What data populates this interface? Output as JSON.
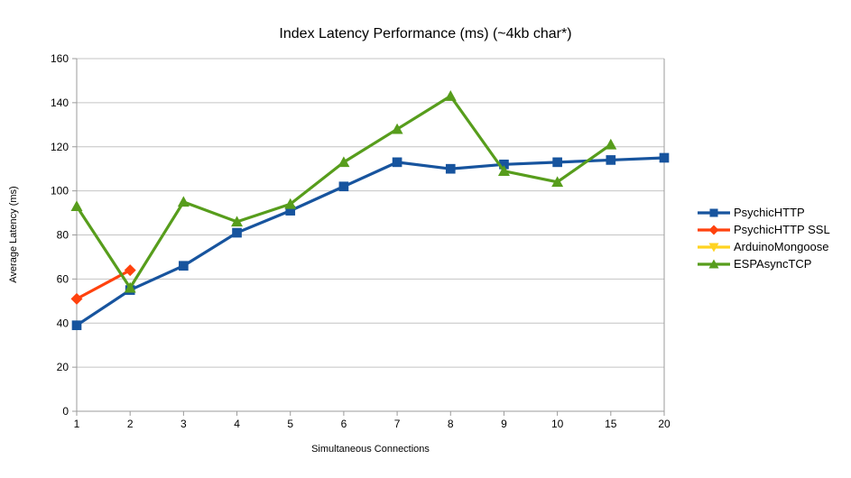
{
  "chart_data": {
    "type": "line",
    "title": "Index Latency Performance (ms) (~4kb char*)",
    "xlabel": "Simultaneous Connections",
    "ylabel": "Average Latency (ms)",
    "categories": [
      "1",
      "2",
      "3",
      "4",
      "5",
      "6",
      "7",
      "8",
      "9",
      "10",
      "15",
      "20"
    ],
    "yticks": [
      0,
      20,
      40,
      60,
      80,
      100,
      120,
      140,
      160
    ],
    "ylim": [
      0,
      160
    ],
    "grid": "horizontal",
    "legend_position": "right",
    "series": [
      {
        "name": "PsychicHTTP",
        "color": "#17549E",
        "marker": "square",
        "values": [
          39,
          55,
          66,
          81,
          91,
          102,
          113,
          110,
          112,
          113,
          114,
          115
        ]
      },
      {
        "name": "PsychicHTTP SSL",
        "color": "#FF420E",
        "marker": "diamond",
        "values": [
          51,
          64,
          null,
          null,
          null,
          null,
          null,
          null,
          null,
          null,
          null,
          null
        ]
      },
      {
        "name": "ArduinoMongoose",
        "color": "#FFD320",
        "marker": "triangle-down",
        "values": [
          null,
          null,
          null,
          null,
          null,
          null,
          null,
          null,
          null,
          null,
          null,
          null
        ]
      },
      {
        "name": "ESPAsyncTCP",
        "color": "#579D1C",
        "marker": "triangle-up",
        "values": [
          93,
          56,
          95,
          86,
          94,
          113,
          128,
          143,
          109,
          104,
          121,
          null
        ]
      }
    ],
    "colors": {
      "grid": "#C4C4C4",
      "axis": "#9B9B9B",
      "text": "#000000",
      "background": "#FFFFFF"
    }
  }
}
